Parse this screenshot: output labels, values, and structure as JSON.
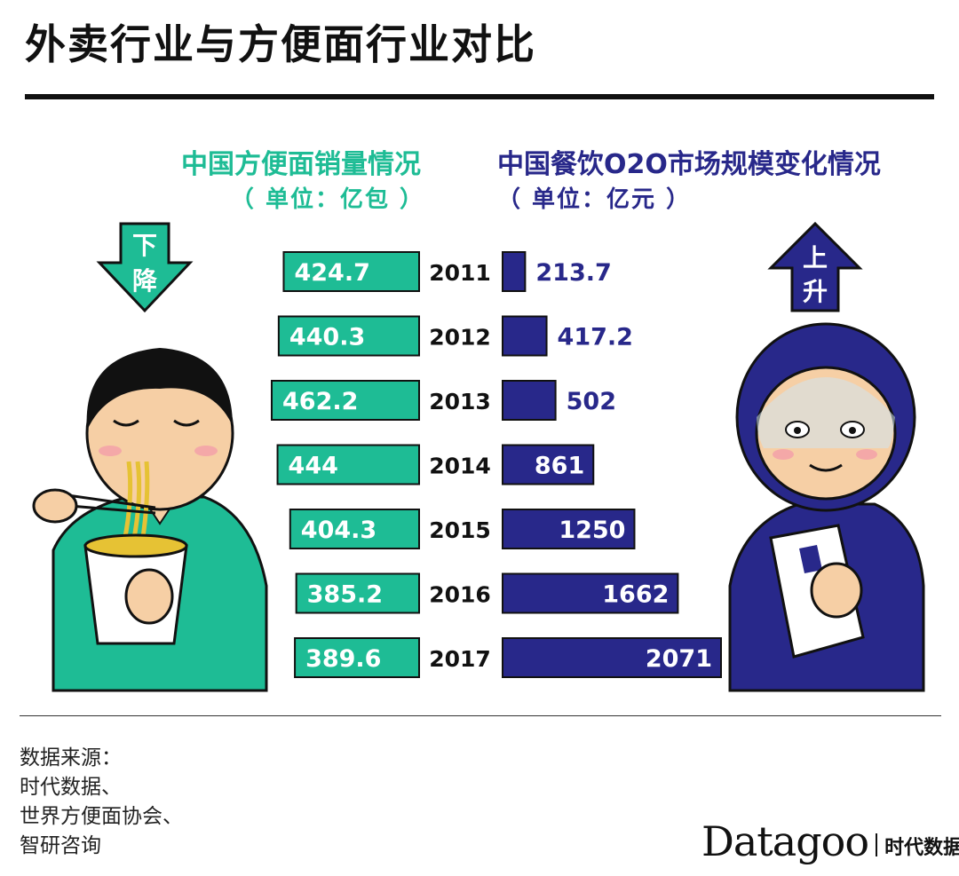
{
  "title": "外卖行业与方便面行业对比",
  "colors": {
    "noodle": "#1ebc95",
    "o2o": "#28288a",
    "text_dark": "#111111"
  },
  "left_panel": {
    "heading": "中国方便面销量情况",
    "unit": "（ 单位：亿包 ）",
    "arrow_label_1": "下",
    "arrow_label_2": "降"
  },
  "right_panel": {
    "heading": "中国餐饮O2O市场规模变化情况",
    "unit": "（ 单位：亿元 ）",
    "arrow_label_1": "上",
    "arrow_label_2": "升"
  },
  "chart_data": [
    {
      "type": "bar",
      "orientation": "horizontal",
      "direction": "leftward",
      "title": "中国方便面销量情况",
      "unit": "亿包",
      "categories": [
        "2011",
        "2012",
        "2013",
        "2014",
        "2015",
        "2016",
        "2017"
      ],
      "values": [
        424.7,
        440.3,
        462.2,
        444,
        404.3,
        385.2,
        389.6
      ],
      "value_labels": [
        "424.7",
        "440.3",
        "462.2",
        "444",
        "404.3",
        "385.2",
        "389.6"
      ],
      "xlim": [
        0,
        470
      ],
      "grid": false,
      "legend": "none"
    },
    {
      "type": "bar",
      "orientation": "horizontal",
      "direction": "rightward",
      "title": "中国餐饮O2O市场规模变化情况",
      "unit": "亿元",
      "categories": [
        "2011",
        "2012",
        "2013",
        "2014",
        "2015",
        "2016",
        "2017"
      ],
      "values": [
        213.7,
        417.2,
        502,
        861,
        1250,
        1662,
        2071
      ],
      "value_labels": [
        "213.7",
        "417.2",
        "502",
        "861",
        "1250",
        "1662",
        "2071"
      ],
      "xlim": [
        0,
        2100
      ],
      "grid": false,
      "legend": "none"
    }
  ],
  "source": {
    "label": "数据来源：",
    "lines": [
      "时代数据、",
      "世界方便面协会、",
      "智研咨询"
    ]
  },
  "brand": {
    "name": "Datagoo",
    "cn": "时代数据"
  }
}
